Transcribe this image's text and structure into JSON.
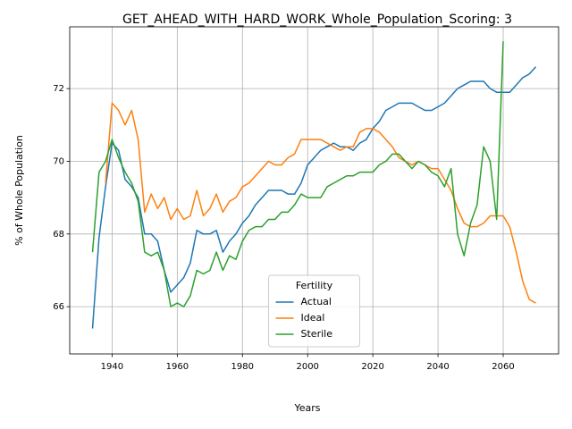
{
  "chart_data": {
    "type": "line",
    "title": "GET_AHEAD_WITH_HARD_WORK_Whole_Population_Scoring: 3",
    "xlabel": "Years",
    "ylabel": "% of Whole Population",
    "legend_title": "Fertility",
    "legend": "lower center",
    "grid": true,
    "xlim": [
      1927,
      2077
    ],
    "ylim": [
      64.7,
      73.7
    ],
    "xticks": [
      1940,
      1960,
      1980,
      2000,
      2020,
      2040,
      2060
    ],
    "yticks": [
      66,
      68,
      70,
      72
    ],
    "x": [
      1934,
      1936,
      1938,
      1940,
      1942,
      1944,
      1946,
      1948,
      1950,
      1952,
      1954,
      1956,
      1958,
      1960,
      1962,
      1964,
      1966,
      1968,
      1970,
      1972,
      1974,
      1976,
      1978,
      1980,
      1982,
      1984,
      1986,
      1988,
      1990,
      1992,
      1994,
      1996,
      1998,
      2000,
      2002,
      2004,
      2006,
      2008,
      2010,
      2012,
      2014,
      2016,
      2018,
      2020,
      2022,
      2024,
      2026,
      2028,
      2030,
      2032,
      2034,
      2036,
      2038,
      2040,
      2042,
      2044,
      2046,
      2048,
      2050,
      2052,
      2054,
      2056,
      2058,
      2060,
      2062,
      2064,
      2066,
      2068,
      2070
    ],
    "series": [
      {
        "name": "Actual",
        "color": "#1f77b4",
        "values": [
          65.4,
          67.9,
          69.3,
          70.5,
          70.3,
          69.5,
          69.3,
          69.0,
          68.0,
          68.0,
          67.8,
          67.0,
          66.4,
          66.6,
          66.8,
          67.2,
          68.1,
          68.0,
          68.0,
          68.1,
          67.5,
          67.8,
          68.0,
          68.3,
          68.5,
          68.8,
          69.0,
          69.2,
          69.2,
          69.2,
          69.1,
          69.1,
          69.4,
          69.9,
          70.1,
          70.3,
          70.4,
          70.5,
          70.4,
          70.4,
          70.3,
          70.5,
          70.6,
          70.9,
          71.1,
          71.4,
          71.5,
          71.6,
          71.6,
          71.6,
          71.5,
          71.4,
          71.4,
          71.5,
          71.6,
          71.8,
          72.0,
          72.1,
          72.2,
          72.2,
          72.2,
          72.0,
          71.9,
          71.9,
          71.9,
          72.1,
          72.3,
          72.4,
          72.6
        ]
      },
      {
        "name": "Ideal",
        "color": "#ff7f0e",
        "values": [
          null,
          null,
          69.4,
          71.6,
          71.4,
          71.0,
          71.4,
          70.6,
          68.6,
          69.1,
          68.7,
          69.0,
          68.4,
          68.7,
          68.4,
          68.5,
          69.2,
          68.5,
          68.7,
          69.1,
          68.6,
          68.9,
          69.0,
          69.3,
          69.4,
          69.6,
          69.8,
          70.0,
          69.9,
          69.9,
          70.1,
          70.2,
          70.6,
          70.6,
          70.6,
          70.6,
          70.5,
          70.4,
          70.3,
          70.4,
          70.4,
          70.8,
          70.9,
          70.9,
          70.8,
          70.6,
          70.4,
          70.1,
          70.0,
          69.9,
          70.0,
          69.9,
          69.8,
          69.8,
          69.5,
          69.2,
          68.7,
          68.3,
          68.2,
          68.2,
          68.3,
          68.5,
          68.5,
          68.5,
          68.2,
          67.5,
          66.7,
          66.2,
          66.1
        ]
      },
      {
        "name": "Sterile",
        "color": "#2ca02c",
        "values": [
          67.5,
          69.7,
          70.0,
          70.6,
          70.1,
          69.7,
          69.4,
          68.9,
          67.5,
          67.4,
          67.5,
          67.0,
          66.0,
          66.1,
          66.0,
          66.3,
          67.0,
          66.9,
          67.0,
          67.5,
          67.0,
          67.4,
          67.3,
          67.8,
          68.1,
          68.2,
          68.2,
          68.4,
          68.4,
          68.6,
          68.6,
          68.8,
          69.1,
          69.0,
          69.0,
          69.0,
          69.3,
          69.4,
          69.5,
          69.6,
          69.6,
          69.7,
          69.7,
          69.7,
          69.9,
          70.0,
          70.2,
          70.2,
          70.0,
          69.8,
          70.0,
          69.9,
          69.7,
          69.6,
          69.3,
          69.8,
          68.0,
          67.4,
          68.3,
          68.8,
          70.4,
          70.0,
          68.4,
          73.3,
          null,
          null,
          null,
          null,
          null
        ]
      }
    ]
  }
}
